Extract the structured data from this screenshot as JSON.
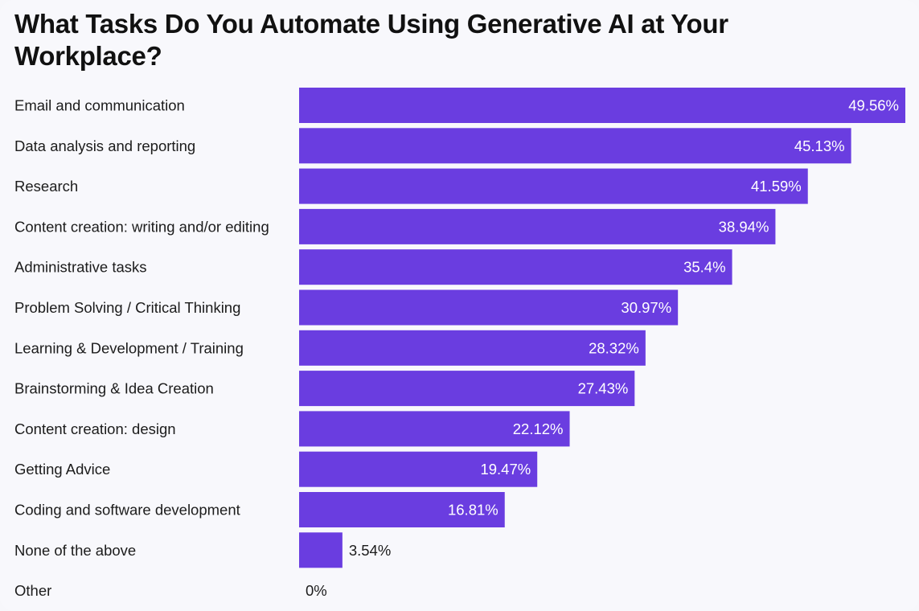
{
  "chart_data": {
    "type": "bar",
    "orientation": "horizontal",
    "title": "What Tasks Do You Automate Using Generative AI at Your Workplace?",
    "categories": [
      "Email and communication",
      "Data analysis and reporting",
      "Research",
      "Content creation: writing and/or editing",
      "Administrative tasks",
      "Problem Solving / Critical Thinking",
      "Learning & Development / Training",
      "Brainstorming & Idea Creation",
      "Content creation: design",
      "Getting Advice",
      "Coding and software development",
      "None of the above",
      "Other"
    ],
    "values": [
      49.56,
      45.13,
      41.59,
      38.94,
      35.4,
      30.97,
      28.32,
      27.43,
      22.12,
      19.47,
      16.81,
      3.54,
      0
    ],
    "value_labels": [
      "49.56%",
      "45.13%",
      "41.59%",
      "38.94%",
      "35.4%",
      "30.97%",
      "28.32%",
      "27.43%",
      "22.12%",
      "19.47%",
      "16.81%",
      "3.54%",
      "0%"
    ],
    "xlim": [
      0,
      49.56
    ],
    "grid": false,
    "legend": "none",
    "bar_color": "#6a3de0",
    "label_inside_color": "#ffffff",
    "label_outside_color": "#1c1c1c",
    "text_color": "#1c1c1c",
    "background_color": "#f8f8fc"
  }
}
